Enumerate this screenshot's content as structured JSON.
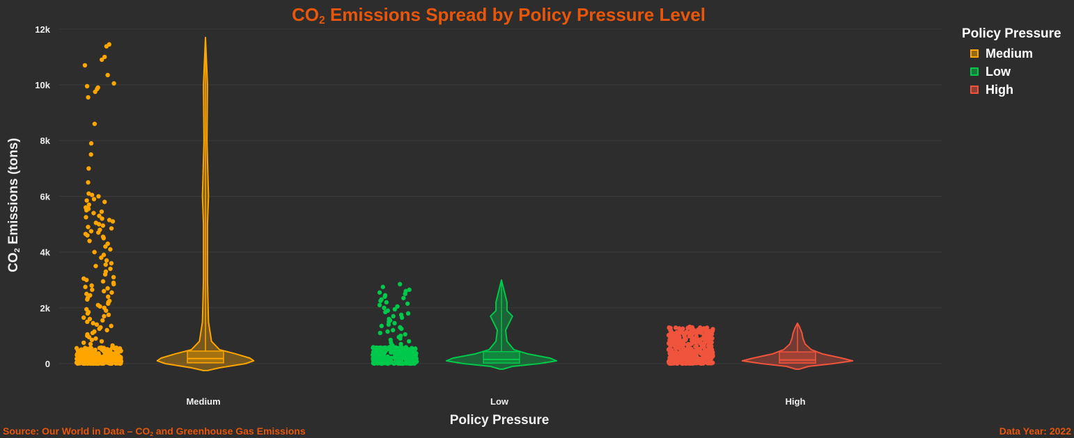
{
  "title": {
    "prefix": "CO",
    "sub": "2",
    "suffix": " Emissions Spread by Policy Pressure Level"
  },
  "footer": {
    "source_prefix": "Source: Our World in Data – CO",
    "source_sub": "2",
    "source_suffix": " and Greenhouse Gas Emissions",
    "year": "Data Year: 2022"
  },
  "axis": {
    "y_prefix": "CO",
    "y_sub": "2",
    "y_suffix": " Emissions (tons)",
    "x_title": "Policy Pressure"
  },
  "legend": {
    "title": "Policy Pressure",
    "items": [
      {
        "label": "Medium",
        "color": "#ffa500"
      },
      {
        "label": "Low",
        "color": "#00c84a"
      },
      {
        "label": "High",
        "color": "#f0543c"
      }
    ]
  },
  "chart_data": {
    "type": "violin",
    "title": "CO₂ Emissions Spread by Policy Pressure Level",
    "xlabel": "Policy Pressure",
    "ylabel": "CO₂ Emissions (tons)",
    "ylim": [
      -300,
      12000
    ],
    "yticks": [
      0,
      2000,
      4000,
      6000,
      8000,
      10000,
      12000
    ],
    "ytick_labels": [
      "0",
      "2k",
      "4k",
      "6k",
      "8k",
      "10k",
      "12k"
    ],
    "categories": [
      "Medium",
      "Low",
      "High"
    ],
    "grid": true,
    "legend_position": "top-right",
    "series": [
      {
        "name": "Medium",
        "color": "#ffa500",
        "min": 0,
        "q1": 30,
        "median": 180,
        "q3": 450,
        "max": 11700,
        "violin_profile": [
          [
            -250,
            2
          ],
          [
            -150,
            14
          ],
          [
            0,
            40
          ],
          [
            100,
            48
          ],
          [
            200,
            44
          ],
          [
            350,
            30
          ],
          [
            500,
            14
          ],
          [
            800,
            6
          ],
          [
            1500,
            3
          ],
          [
            3000,
            2
          ],
          [
            5000,
            2
          ],
          [
            6000,
            3
          ],
          [
            8000,
            1.5
          ],
          [
            10000,
            2
          ],
          [
            11700,
            0
          ]
        ],
        "outliers": [
          11450,
          11380,
          11000,
          10900,
          10700,
          10350,
          10050,
          9950,
          9900,
          9850,
          9750,
          9550,
          8600,
          7900,
          7500,
          7000,
          6500,
          6100,
          6050,
          6000,
          5900,
          5850,
          5800,
          5700,
          5600,
          5550,
          5500,
          5450,
          5400,
          5300,
          5250,
          5200,
          5150,
          5100,
          5050,
          5000,
          4950,
          4900,
          4850,
          4800,
          4750,
          4700,
          4650,
          4600,
          4550,
          4500,
          4400,
          4300,
          4200,
          4100,
          4000,
          3900,
          3800,
          3700,
          3600,
          3550,
          3500,
          3400,
          3300,
          3200,
          3100,
          3050,
          3000,
          2950,
          2900,
          2850,
          2800,
          2750,
          2700,
          2650,
          2600,
          2550,
          2500,
          2450,
          2400,
          2350,
          2300,
          2250,
          2200,
          2150,
          2100,
          2050,
          2000,
          1950,
          1900,
          1850,
          1800,
          1750,
          1700,
          1650,
          1600,
          1550,
          1500,
          1450,
          1400,
          1350,
          1300,
          1250,
          1200,
          1150,
          1100,
          1050,
          1000,
          950,
          900,
          850,
          800,
          750,
          700,
          650
        ]
      },
      {
        "name": "Low",
        "color": "#00c84a",
        "min": 0,
        "q1": 20,
        "median": 150,
        "q3": 430,
        "max": 3000,
        "violin_profile": [
          [
            -200,
            2
          ],
          [
            -100,
            16
          ],
          [
            0,
            55
          ],
          [
            100,
            80
          ],
          [
            200,
            70
          ],
          [
            350,
            38
          ],
          [
            500,
            18
          ],
          [
            800,
            8
          ],
          [
            1200,
            6
          ],
          [
            1500,
            12
          ],
          [
            1700,
            16
          ],
          [
            1900,
            8
          ],
          [
            2200,
            8
          ],
          [
            2400,
            6
          ],
          [
            2700,
            3
          ],
          [
            3000,
            0
          ]
        ],
        "outliers": [
          2850,
          2750,
          2650,
          2600,
          2550,
          2500,
          2450,
          2400,
          2350,
          2300,
          2250,
          2200,
          2150,
          2100,
          2050,
          2000,
          1950,
          1900,
          1850,
          1800,
          1750,
          1700,
          1650,
          1600,
          1550,
          1500,
          1450,
          1400,
          1350,
          1300,
          1250,
          1200,
          1150,
          1100,
          1050,
          1000,
          950,
          900,
          850,
          800,
          750,
          700,
          650,
          600
        ]
      },
      {
        "name": "High",
        "color": "#f0543c",
        "min": 0,
        "q1": 20,
        "median": 130,
        "q3": 420,
        "max": 1450,
        "violin_profile": [
          [
            -200,
            3
          ],
          [
            -100,
            20
          ],
          [
            0,
            65
          ],
          [
            100,
            100
          ],
          [
            200,
            80
          ],
          [
            350,
            45
          ],
          [
            500,
            25
          ],
          [
            700,
            14
          ],
          [
            900,
            10
          ],
          [
            1100,
            8
          ],
          [
            1300,
            4
          ],
          [
            1450,
            0
          ]
        ],
        "outliers": [
          1320,
          1300,
          1280,
          1260,
          1240,
          1220,
          1200,
          1180,
          1160,
          1140,
          1120,
          1100,
          1080,
          1060,
          1040,
          1020,
          1000,
          980,
          960,
          940,
          920,
          900,
          880,
          860,
          840,
          820,
          800,
          780,
          760,
          740,
          720,
          700,
          680,
          660
        ]
      }
    ]
  }
}
